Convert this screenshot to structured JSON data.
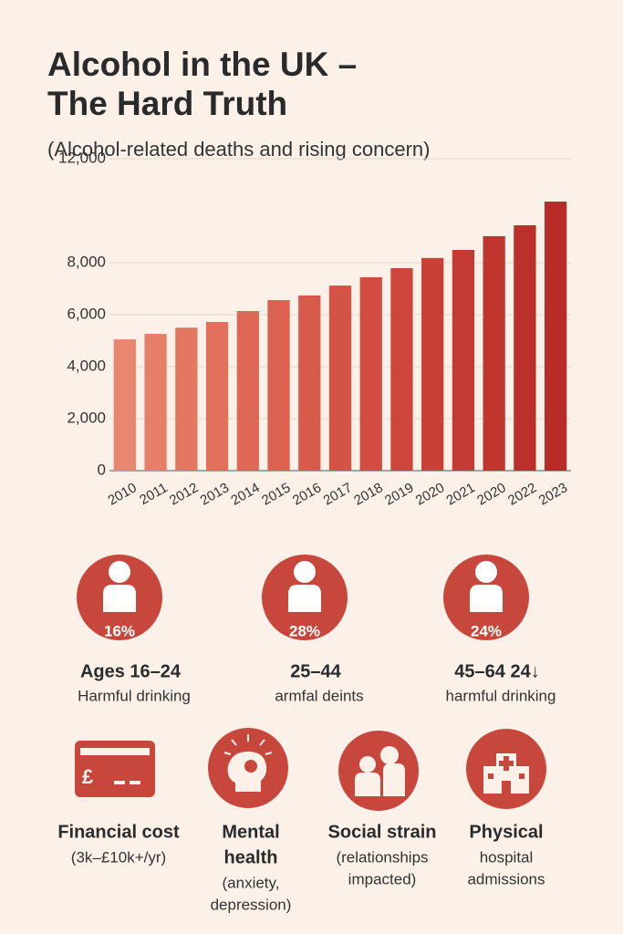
{
  "header": {
    "title_lines": [
      "Alcohol in the UK –",
      "The Hard Truth"
    ],
    "subtitle": "(Alcohol-related deaths and rising concern)"
  },
  "chart_data": {
    "type": "bar",
    "categories": [
      "2010",
      "2011",
      "2012",
      "2013",
      "2014",
      "2015",
      "2016",
      "2017",
      "2018",
      "2019",
      "2020",
      "2021",
      "2020",
      "2022",
      "2023"
    ],
    "values": [
      5050,
      5260,
      5500,
      5720,
      6140,
      6560,
      6740,
      7120,
      7440,
      7790,
      8180,
      8490,
      9020,
      9440,
      10350
    ],
    "colors": [
      "#e9866f",
      "#e77e68",
      "#e47762",
      "#e2705c",
      "#de6856",
      "#db6150",
      "#d85a4b",
      "#d45346",
      "#d14c41",
      "#cd463c",
      "#c94037",
      "#c53a33",
      "#c1352f",
      "#bc302b",
      "#b72b28"
    ],
    "ylim": [
      0,
      12000
    ],
    "yticks": [
      0,
      {
        "value": 2000,
        "label": "2,000"
      },
      {
        "value": 4000,
        "label": "4,000"
      },
      {
        "value": 6000,
        "label": "6,000"
      },
      {
        "value": 8000,
        "label": "8,000"
      },
      {
        "value": 12000,
        "label": "12,000"
      }
    ],
    "grid": true
  },
  "stats": [
    {
      "percent": "16%",
      "label": "Ages 16–24",
      "note": "Harmful drinking"
    },
    {
      "percent": "28%",
      "label": "25–44",
      "note": "armfal deints"
    },
    {
      "percent": "24%",
      "label": "45–64 24↓",
      "note": "harmful drinking"
    }
  ],
  "impacts": [
    {
      "title": [
        "Financial cost"
      ],
      "note": [
        "(3k–£10k+/yr)"
      ]
    },
    {
      "title": [
        "Mental",
        "health"
      ],
      "note": [
        "(anxiety,",
        "depression)"
      ]
    },
    {
      "title": [
        "Social strain"
      ],
      "note": [
        "(relationships",
        "impacted)"
      ]
    },
    {
      "title": [
        "Physical"
      ],
      "note": [
        "hospital",
        "admissions"
      ]
    }
  ]
}
